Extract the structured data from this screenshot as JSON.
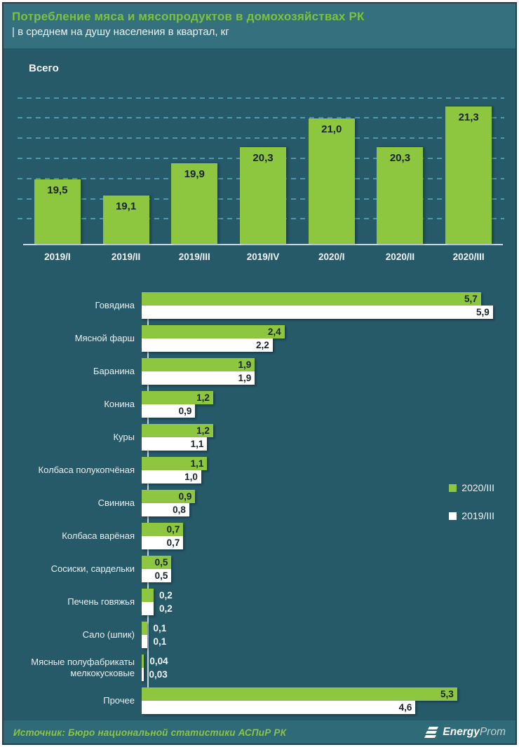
{
  "header": {
    "title": "Потребление мяса и мясопродуктов в домохозяйствах РК",
    "subtitle": "| в среднем на душу населения в квартал, кг"
  },
  "colors": {
    "background": "#265a69",
    "header_background": "#34707d",
    "footer_background": "#2e6a77",
    "accent_green": "#8dc63f",
    "bar_white": "#ffffff",
    "gridline_blue": "#4e98ae",
    "title_green": "#7cc242",
    "text_light": "#eef4f5",
    "value_dark": "#18232b"
  },
  "chart_data": [
    {
      "type": "bar",
      "title": "Всего",
      "categories": [
        "2019/I",
        "2019/II",
        "2019/III",
        "2019/IV",
        "2020/I",
        "2020/II",
        "2020/III"
      ],
      "values": [
        19.5,
        19.1,
        19.9,
        20.3,
        21.0,
        20.3,
        21.3
      ],
      "value_labels": [
        "19,5",
        "19,1",
        "19,9",
        "20,3",
        "21,0",
        "20,3",
        "21,3"
      ],
      "xlabel": "",
      "ylabel": "",
      "ylim": [
        17.9,
        21.65
      ],
      "gridlines": [
        18.5,
        19.0,
        19.5,
        20.0,
        20.5,
        21.0,
        21.5
      ],
      "grid": "dashed-horizontal",
      "bar_color": "#8dc63f",
      "legend_position": "none"
    },
    {
      "type": "bar",
      "orientation": "horizontal",
      "categories": [
        "Говядина",
        "Мясной фарш",
        "Баранина",
        "Конина",
        "Куры",
        "Колбаса полукопчёная",
        "Свинина",
        "Колбаса варёная",
        "Сосиски, сардельки",
        "Печень говяжья",
        "Сало (шпик)",
        "Мясные полуфабрикаты мелкокусковые",
        "Прочее"
      ],
      "series": [
        {
          "name": "2020/III",
          "color": "#8dc63f",
          "values": [
            5.7,
            2.4,
            1.9,
            1.2,
            1.2,
            1.1,
            0.9,
            0.7,
            0.5,
            0.2,
            0.1,
            0.04,
            5.3
          ],
          "value_labels": [
            "5,7",
            "2,4",
            "1,9",
            "1,2",
            "1,2",
            "1,1",
            "0,9",
            "0,7",
            "0,5",
            "0,2",
            "0,1",
            "0,04",
            "5,3"
          ]
        },
        {
          "name": "2019/III",
          "color": "#ffffff",
          "values": [
            5.9,
            2.2,
            1.9,
            0.9,
            1.1,
            1.0,
            0.8,
            0.7,
            0.5,
            0.2,
            0.1,
            0.03,
            4.6
          ],
          "value_labels": [
            "5,9",
            "2,2",
            "1,9",
            "0,9",
            "1,1",
            "1,0",
            "0,8",
            "0,7",
            "0,5",
            "0,2",
            "0,1",
            "0,03",
            "4,6"
          ]
        }
      ],
      "xlim": [
        0,
        5.95
      ],
      "grid": "off",
      "legend_position": "right",
      "inside_label_threshold": 0.45
    }
  ],
  "footer": {
    "source": "Источник: Бюро национальной статистики АСПиР РК",
    "logo_bold": "Energy",
    "logo_light": "Prom"
  }
}
